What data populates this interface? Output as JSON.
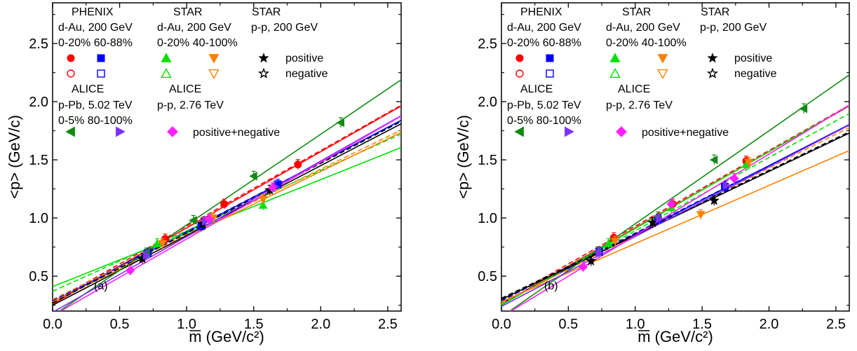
{
  "chart_data": [
    {
      "type": "scatter",
      "panel_label": "(a)",
      "xlabel": "m (GeV/c²)",
      "ylabel": "<p> (GeV/c)",
      "xlim": [
        0.0,
        2.6
      ],
      "ylim": [
        0.2,
        2.85
      ],
      "xticks": [
        0.0,
        0.5,
        1.0,
        1.5,
        2.0,
        2.5
      ],
      "xtick_labels": [
        "0.0",
        "0.5",
        "1.0",
        "1.5",
        "2.0",
        "2.5"
      ],
      "yticks": [
        0.5,
        1.0,
        1.5,
        2.0,
        2.5
      ],
      "ytick_labels": [
        "0.5",
        "1.0",
        "1.5",
        "2.0",
        "2.5"
      ],
      "series": [
        {
          "color": "#ff0000",
          "marker": "circle",
          "x": [
            0.84,
            1.28,
            1.83
          ],
          "y": [
            0.82,
            1.12,
            1.46
          ],
          "fits": [
            {
              "slope": 0.655,
              "intercept": 0.26,
              "style": "solid"
            },
            {
              "slope": 0.65,
              "intercept": 0.28,
              "style": "dashed"
            }
          ]
        },
        {
          "color": "#0000ff",
          "marker": "square",
          "x": [
            0.71,
            1.11,
            1.68
          ],
          "y": [
            0.7,
            0.93,
            1.29
          ],
          "fits": [
            {
              "slope": 0.6,
              "intercept": 0.28,
              "style": "solid"
            },
            {
              "slope": 0.595,
              "intercept": 0.29,
              "style": "dashed"
            }
          ]
        },
        {
          "color": "#00e000",
          "marker": "triangle-up",
          "x": [
            0.78,
            1.18,
            1.57
          ],
          "y": [
            0.78,
            1.0,
            1.11
          ],
          "fits": [
            {
              "slope": 0.46,
              "intercept": 0.41,
              "style": "solid"
            },
            {
              "slope": 0.52,
              "intercept": 0.37,
              "style": "dashed"
            }
          ]
        },
        {
          "color": "#ff8000",
          "marker": "triangle-down",
          "x": [
            0.82,
            1.2,
            1.57
          ],
          "y": [
            0.78,
            1.0,
            1.16
          ],
          "fits": [
            {
              "slope": 0.56,
              "intercept": 0.28,
              "style": "solid"
            },
            {
              "slope": 0.56,
              "intercept": 0.3,
              "style": "dashed"
            }
          ]
        },
        {
          "color": "#000000",
          "marker": "star",
          "x": [
            0.67,
            1.12,
            1.62
          ],
          "y": [
            0.65,
            0.95,
            1.24
          ],
          "fits": [
            {
              "slope": 0.6,
              "intercept": 0.25,
              "style": "solid"
            },
            {
              "slope": 0.6,
              "intercept": 0.27,
              "style": "dashed"
            }
          ]
        },
        {
          "color": "#138a13",
          "marker": "triangle-left",
          "x": [
            0.7,
            1.05,
            1.5,
            2.15
          ],
          "y": [
            0.7,
            0.98,
            1.36,
            1.82
          ],
          "fits": [
            {
              "slope": 0.78,
              "intercept": 0.16,
              "style": "solid"
            }
          ]
        },
        {
          "color": "#7f30ff",
          "marker": "triangle-right",
          "x": [
            0.7,
            1.14,
            1.66
          ],
          "y": [
            0.68,
            0.97,
            1.27
          ],
          "fits": [
            {
              "slope": 0.65,
              "intercept": 0.19,
              "style": "solid"
            }
          ]
        },
        {
          "color": "#ff20ff",
          "marker": "diamond",
          "x": [
            0.58,
            1.17,
            1.64
          ],
          "y": [
            0.55,
            0.99,
            1.26
          ],
          "fits": [
            {
              "slope": 0.66,
              "intercept": 0.16,
              "style": "solid"
            }
          ]
        }
      ]
    },
    {
      "type": "scatter",
      "panel_label": "(b)",
      "xlabel": "m (GeV/c²)",
      "ylabel": "<p> (GeV/c)",
      "xlim": [
        0.0,
        2.6
      ],
      "ylim": [
        0.2,
        2.85
      ],
      "xticks": [
        0.0,
        0.5,
        1.0,
        1.5,
        2.0,
        2.5
      ],
      "xtick_labels": [
        "0.0",
        "0.5",
        "1.0",
        "1.5",
        "2.0",
        "2.5"
      ],
      "yticks": [
        0.5,
        1.0,
        1.5,
        2.0,
        2.5
      ],
      "ytick_labels": [
        "0.5",
        "1.0",
        "1.5",
        "2.0",
        "2.5"
      ],
      "series": [
        {
          "color": "#ff0000",
          "marker": "circle",
          "x": [
            0.84,
            1.28,
            1.83
          ],
          "y": [
            0.83,
            1.12,
            1.49
          ],
          "fits": [
            {
              "slope": 0.655,
              "intercept": 0.26,
              "style": "solid"
            },
            {
              "slope": 0.65,
              "intercept": 0.28,
              "style": "dashed"
            }
          ]
        },
        {
          "color": "#0000ff",
          "marker": "square",
          "x": [
            0.73,
            1.17,
            1.67
          ],
          "y": [
            0.71,
            0.99,
            1.27
          ],
          "fits": [
            {
              "slope": 0.59,
              "intercept": 0.27,
              "style": "solid"
            },
            {
              "slope": 0.58,
              "intercept": 0.29,
              "style": "dashed"
            }
          ]
        },
        {
          "color": "#00e000",
          "marker": "triangle-up",
          "x": [
            0.8,
            1.27,
            1.83
          ],
          "y": [
            0.78,
            1.09,
            1.46
          ],
          "fits": [
            {
              "slope": 0.66,
              "intercept": 0.25,
              "style": "solid"
            },
            {
              "slope": 0.63,
              "intercept": 0.26,
              "style": "dashed"
            }
          ]
        },
        {
          "color": "#ff8000",
          "marker": "triangle-down",
          "x": [
            0.85,
            1.49,
            1.85
          ],
          "y": [
            0.8,
            1.03,
            1.48
          ],
          "fits": [
            {
              "slope": 0.5,
              "intercept": 0.28,
              "style": "solid"
            },
            {
              "slope": 0.58,
              "intercept": 0.27,
              "style": "dashed"
            }
          ]
        },
        {
          "color": "#000000",
          "marker": "star",
          "x": [
            0.67,
            1.13,
            1.59
          ],
          "y": [
            0.63,
            0.96,
            1.15
          ],
          "fits": [
            {
              "slope": 0.55,
              "intercept": 0.3,
              "style": "solid"
            },
            {
              "slope": 0.55,
              "intercept": 0.31,
              "style": "dashed"
            }
          ]
        },
        {
          "color": "#138a13",
          "marker": "triangle-left",
          "x": [
            0.72,
            1.17,
            1.59,
            2.26
          ],
          "y": [
            0.71,
            1.01,
            1.5,
            1.94
          ],
          "fits": [
            {
              "slope": 0.8,
              "intercept": 0.15,
              "style": "solid"
            }
          ]
        },
        {
          "color": "#7f30ff",
          "marker": "triangle-right",
          "x": [
            0.73,
            1.18,
            1.68
          ],
          "y": [
            0.7,
            0.99,
            1.28
          ],
          "fits": [
            {
              "slope": 0.6,
              "intercept": 0.24,
              "style": "solid"
            }
          ]
        },
        {
          "color": "#ff20ff",
          "marker": "diamond",
          "x": [
            0.61,
            1.27,
            1.74
          ],
          "y": [
            0.58,
            1.12,
            1.34
          ],
          "fits": [
            {
              "slope": 0.7,
              "intercept": 0.15,
              "style": "solid"
            }
          ]
        }
      ]
    }
  ],
  "legend": {
    "phenix_title": "PHENIX",
    "phenix_sys": "d-Au, 200 GeV",
    "phenix_cent": "0-20% 60-88%",
    "star_dau_title": "STAR",
    "star_dau_sys": "d-Au, 200 GeV",
    "star_dau_cent": "0-20% 40-100%",
    "star_pp_title": "STAR",
    "star_pp_sys": "p-p, 200 GeV",
    "positive": "positive",
    "negative": "negative",
    "alice_ppb_title": "ALICE",
    "alice_ppb_sys": "p-Pb, 5.02 TeV",
    "alice_ppb_cent": "0-5%   80-100%",
    "alice_pp_title": "ALICE",
    "alice_pp_sys": "p-p, 2.76 TeV",
    "posneg": "positive+negative"
  },
  "colors": {
    "phenix_central": "#ff0000",
    "phenix_peripheral": "#0000ff",
    "star_dau_central": "#00e000",
    "star_dau_peripheral": "#ff8000",
    "star_pp": "#000000",
    "alice_ppb_central": "#138a13",
    "alice_ppb_peripheral": "#7f30ff",
    "alice_pp": "#ff20ff"
  }
}
